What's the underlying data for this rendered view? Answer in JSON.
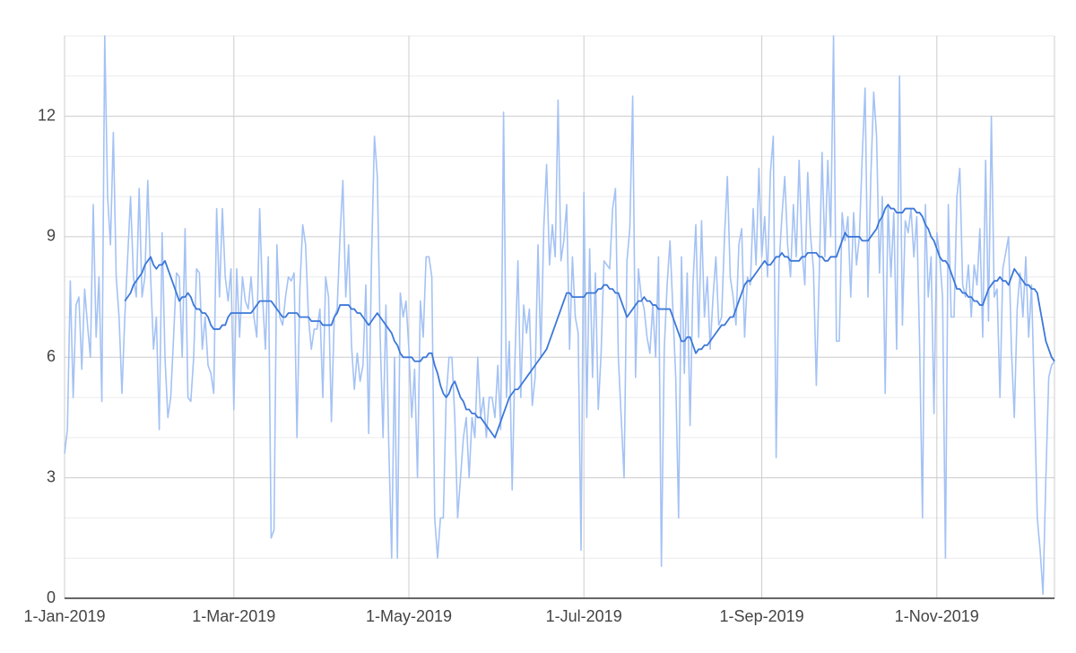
{
  "chart_data": {
    "type": "line",
    "x": [
      "1-Jan-2019",
      "2-Jan-2019",
      "3-Jan-2019",
      "4-Jan-2019",
      "5-Jan-2019",
      "6-Jan-2019",
      "7-Jan-2019",
      "8-Jan-2019",
      "9-Jan-2019",
      "10-Jan-2019",
      "11-Jan-2019",
      "12-Jan-2019",
      "13-Jan-2019",
      "14-Jan-2019",
      "15-Jan-2019",
      "16-Jan-2019",
      "17-Jan-2019",
      "18-Jan-2019",
      "19-Jan-2019",
      "20-Jan-2019",
      "21-Jan-2019",
      "22-Jan-2019",
      "23-Jan-2019",
      "24-Jan-2019",
      "25-Jan-2019",
      "26-Jan-2019",
      "27-Jan-2019",
      "28-Jan-2019",
      "29-Jan-2019",
      "30-Jan-2019",
      "31-Jan-2019",
      "1-Feb-2019",
      "2-Feb-2019",
      "3-Feb-2019",
      "4-Feb-2019",
      "5-Feb-2019",
      "6-Feb-2019",
      "7-Feb-2019",
      "8-Feb-2019",
      "9-Feb-2019",
      "10-Feb-2019",
      "11-Feb-2019",
      "12-Feb-2019",
      "13-Feb-2019",
      "14-Feb-2019",
      "15-Feb-2019",
      "16-Feb-2019",
      "17-Feb-2019",
      "18-Feb-2019",
      "19-Feb-2019",
      "20-Feb-2019",
      "21-Feb-2019",
      "22-Feb-2019",
      "23-Feb-2019",
      "24-Feb-2019",
      "25-Feb-2019",
      "26-Feb-2019",
      "27-Feb-2019",
      "28-Feb-2019",
      "1-Mar-2019",
      "2-Mar-2019",
      "3-Mar-2019",
      "4-Mar-2019",
      "5-Mar-2019",
      "6-Mar-2019",
      "7-Mar-2019",
      "8-Mar-2019",
      "9-Mar-2019",
      "10-Mar-2019",
      "11-Mar-2019",
      "12-Mar-2019",
      "13-Mar-2019",
      "14-Mar-2019",
      "15-Mar-2019",
      "16-Mar-2019",
      "17-Mar-2019",
      "18-Mar-2019",
      "19-Mar-2019",
      "20-Mar-2019",
      "21-Mar-2019",
      "22-Mar-2019",
      "23-Mar-2019",
      "24-Mar-2019",
      "25-Mar-2019",
      "26-Mar-2019",
      "27-Mar-2019",
      "28-Mar-2019",
      "29-Mar-2019",
      "30-Mar-2019",
      "31-Mar-2019",
      "1-Apr-2019",
      "2-Apr-2019",
      "3-Apr-2019",
      "4-Apr-2019",
      "5-Apr-2019",
      "6-Apr-2019",
      "7-Apr-2019",
      "8-Apr-2019",
      "9-Apr-2019",
      "10-Apr-2019",
      "11-Apr-2019",
      "12-Apr-2019",
      "13-Apr-2019",
      "14-Apr-2019",
      "15-Apr-2019",
      "16-Apr-2019",
      "17-Apr-2019",
      "18-Apr-2019",
      "19-Apr-2019",
      "20-Apr-2019",
      "21-Apr-2019",
      "22-Apr-2019",
      "23-Apr-2019",
      "24-Apr-2019",
      "25-Apr-2019",
      "26-Apr-2019",
      "27-Apr-2019",
      "28-Apr-2019",
      "29-Apr-2019",
      "30-Apr-2019",
      "1-May-2019",
      "2-May-2019",
      "3-May-2019",
      "4-May-2019",
      "5-May-2019",
      "6-May-2019",
      "7-May-2019",
      "8-May-2019",
      "9-May-2019",
      "10-May-2019",
      "11-May-2019",
      "12-May-2019",
      "13-May-2019",
      "14-May-2019",
      "15-May-2019",
      "16-May-2019",
      "17-May-2019",
      "18-May-2019",
      "19-May-2019",
      "20-May-2019",
      "21-May-2019",
      "22-May-2019",
      "23-May-2019",
      "24-May-2019",
      "25-May-2019",
      "26-May-2019",
      "27-May-2019",
      "28-May-2019",
      "29-May-2019",
      "30-May-2019",
      "31-May-2019",
      "1-Jun-2019",
      "2-Jun-2019",
      "3-Jun-2019",
      "4-Jun-2019",
      "5-Jun-2019",
      "6-Jun-2019",
      "7-Jun-2019",
      "8-Jun-2019",
      "9-Jun-2019",
      "10-Jun-2019",
      "11-Jun-2019",
      "12-Jun-2019",
      "13-Jun-2019",
      "14-Jun-2019",
      "15-Jun-2019",
      "16-Jun-2019",
      "17-Jun-2019",
      "18-Jun-2019",
      "19-Jun-2019",
      "20-Jun-2019",
      "21-Jun-2019",
      "22-Jun-2019",
      "23-Jun-2019",
      "24-Jun-2019",
      "25-Jun-2019",
      "26-Jun-2019",
      "27-Jun-2019",
      "28-Jun-2019",
      "29-Jun-2019",
      "30-Jun-2019",
      "1-Jul-2019",
      "2-Jul-2019",
      "3-Jul-2019",
      "4-Jul-2019",
      "5-Jul-2019",
      "6-Jul-2019",
      "7-Jul-2019",
      "8-Jul-2019",
      "9-Jul-2019",
      "10-Jul-2019",
      "11-Jul-2019",
      "12-Jul-2019",
      "13-Jul-2019",
      "14-Jul-2019",
      "15-Jul-2019",
      "16-Jul-2019",
      "17-Jul-2019",
      "18-Jul-2019",
      "19-Jul-2019",
      "20-Jul-2019",
      "21-Jul-2019",
      "22-Jul-2019",
      "23-Jul-2019",
      "24-Jul-2019",
      "25-Jul-2019",
      "26-Jul-2019",
      "27-Jul-2019",
      "28-Jul-2019",
      "29-Jul-2019",
      "30-Jul-2019",
      "31-Jul-2019",
      "1-Aug-2019",
      "2-Aug-2019",
      "3-Aug-2019",
      "4-Aug-2019",
      "5-Aug-2019",
      "6-Aug-2019",
      "7-Aug-2019",
      "8-Aug-2019",
      "9-Aug-2019",
      "10-Aug-2019",
      "11-Aug-2019",
      "12-Aug-2019",
      "13-Aug-2019",
      "14-Aug-2019",
      "15-Aug-2019",
      "16-Aug-2019",
      "17-Aug-2019",
      "18-Aug-2019",
      "19-Aug-2019",
      "20-Aug-2019",
      "21-Aug-2019",
      "22-Aug-2019",
      "23-Aug-2019",
      "24-Aug-2019",
      "25-Aug-2019",
      "26-Aug-2019",
      "27-Aug-2019",
      "28-Aug-2019",
      "29-Aug-2019",
      "30-Aug-2019",
      "31-Aug-2019",
      "1-Sep-2019",
      "2-Sep-2019",
      "3-Sep-2019",
      "4-Sep-2019",
      "5-Sep-2019",
      "6-Sep-2019",
      "7-Sep-2019",
      "8-Sep-2019",
      "9-Sep-2019",
      "10-Sep-2019",
      "11-Sep-2019",
      "12-Sep-2019",
      "13-Sep-2019",
      "14-Sep-2019",
      "15-Sep-2019",
      "16-Sep-2019",
      "17-Sep-2019",
      "18-Sep-2019",
      "19-Sep-2019",
      "20-Sep-2019",
      "21-Sep-2019",
      "22-Sep-2019",
      "23-Sep-2019",
      "24-Sep-2019",
      "25-Sep-2019",
      "26-Sep-2019",
      "27-Sep-2019",
      "28-Sep-2019",
      "29-Sep-2019",
      "30-Sep-2019",
      "1-Oct-2019",
      "2-Oct-2019",
      "3-Oct-2019",
      "4-Oct-2019",
      "5-Oct-2019",
      "6-Oct-2019",
      "7-Oct-2019",
      "8-Oct-2019",
      "9-Oct-2019",
      "10-Oct-2019",
      "11-Oct-2019",
      "12-Oct-2019",
      "13-Oct-2019",
      "14-Oct-2019",
      "15-Oct-2019",
      "16-Oct-2019",
      "17-Oct-2019",
      "18-Oct-2019",
      "19-Oct-2019",
      "20-Oct-2019",
      "21-Oct-2019",
      "22-Oct-2019",
      "23-Oct-2019",
      "24-Oct-2019",
      "25-Oct-2019",
      "26-Oct-2019",
      "27-Oct-2019",
      "28-Oct-2019",
      "29-Oct-2019",
      "30-Oct-2019",
      "31-Oct-2019",
      "1-Nov-2019",
      "2-Nov-2019",
      "3-Nov-2019",
      "4-Nov-2019",
      "5-Nov-2019",
      "6-Nov-2019",
      "7-Nov-2019",
      "8-Nov-2019",
      "9-Nov-2019",
      "10-Nov-2019",
      "11-Nov-2019",
      "12-Nov-2019",
      "13-Nov-2019",
      "14-Nov-2019",
      "15-Nov-2019",
      "16-Nov-2019",
      "17-Nov-2019",
      "18-Nov-2019",
      "19-Nov-2019",
      "20-Nov-2019",
      "21-Nov-2019",
      "22-Nov-2019",
      "23-Nov-2019",
      "24-Nov-2019",
      "25-Nov-2019",
      "26-Nov-2019",
      "27-Nov-2019",
      "28-Nov-2019",
      "29-Nov-2019",
      "30-Nov-2019",
      "1-Dec-2019",
      "2-Dec-2019",
      "3-Dec-2019",
      "4-Dec-2019",
      "5-Dec-2019",
      "6-Dec-2019",
      "7-Dec-2019",
      "8-Dec-2019",
      "9-Dec-2019",
      "10-Dec-2019",
      "11-Dec-2019",
      "12-Dec-2019"
    ],
    "series": [
      {
        "color": "#a4c2f4",
        "values": [
          3.6,
          4.2,
          7.9,
          5.0,
          7.3,
          7.5,
          5.7,
          7.7,
          6.8,
          6.0,
          9.8,
          6.5,
          8.0,
          4.9,
          14.0,
          10.0,
          8.8,
          11.6,
          8.0,
          7.0,
          5.1,
          7.0,
          8.5,
          10.0,
          8.0,
          7.5,
          10.2,
          7.5,
          8.0,
          10.4,
          8.0,
          6.2,
          7.0,
          4.2,
          9.1,
          6.0,
          4.5,
          5.0,
          6.5,
          8.1,
          8.0,
          6.0,
          9.2,
          5.0,
          4.9,
          6.0,
          8.2,
          8.1,
          6.2,
          7.0,
          5.8,
          5.6,
          5.1,
          9.7,
          7.5,
          9.7,
          8.0,
          7.4,
          8.2,
          4.7,
          8.2,
          6.5,
          8.0,
          7.4,
          7.2,
          8.0,
          7.0,
          6.5,
          9.7,
          7.5,
          6.2,
          8.5,
          1.5,
          1.7,
          8.8,
          7.0,
          6.8,
          7.5,
          8.0,
          7.9,
          8.1,
          4.0,
          7.7,
          9.3,
          8.8,
          7.0,
          6.2,
          6.7,
          6.7,
          7.2,
          5.0,
          8.0,
          7.5,
          4.4,
          7.0,
          7.2,
          9.0,
          10.4,
          7.5,
          8.8,
          6.3,
          5.2,
          6.1,
          5.4,
          5.8,
          7.8,
          4.1,
          8.5,
          11.5,
          10.5,
          6.5,
          4.0,
          7.3,
          3.8,
          1.0,
          6.0,
          1.0,
          7.6,
          7.0,
          7.4,
          6.2,
          4.5,
          5.7,
          3.0,
          7.4,
          6.5,
          8.5,
          8.5,
          8.0,
          2.0,
          1.0,
          2.0,
          2.0,
          5.0,
          6.0,
          6.0,
          4.5,
          2.0,
          3.0,
          4.0,
          4.5,
          3.0,
          4.5,
          4.0,
          6.0,
          4.5,
          5.0,
          4.0,
          5.0,
          5.0,
          4.5,
          5.8,
          4.2,
          12.1,
          5.0,
          6.4,
          2.7,
          6.0,
          8.4,
          5.0,
          7.3,
          6.6,
          7.2,
          4.8,
          5.5,
          8.8,
          6.0,
          9.2,
          10.8,
          8.3,
          9.3,
          8.5,
          12.4,
          8.4,
          8.9,
          9.8,
          6.2,
          8.5,
          7.0,
          6.6,
          1.2,
          10.1,
          4.5,
          8.7,
          5.5,
          8.1,
          4.7,
          6.1,
          8.4,
          8.3,
          8.2,
          9.7,
          10.2,
          6.0,
          4.5,
          3.0,
          8.4,
          9.2,
          12.5,
          5.5,
          8.2,
          7.5,
          7.2,
          6.5,
          6.1,
          7.3,
          6.0,
          8.5,
          0.8,
          6.2,
          7.8,
          8.9,
          7.2,
          5.5,
          2.0,
          8.5,
          5.6,
          8.1,
          4.3,
          7.8,
          9.3,
          6.5,
          9.4,
          7.0,
          8.0,
          6.2,
          7.5,
          8.5,
          6.8,
          7.0,
          9.0,
          10.5,
          8.0,
          7.5,
          6.8,
          8.8,
          9.2,
          6.5,
          8.0,
          7.8,
          9.7,
          8.3,
          10.7,
          8.5,
          9.5,
          8.0,
          10.6,
          11.5,
          3.5,
          8.3,
          9.5,
          10.5,
          8.8,
          8.0,
          9.8,
          8.5,
          10.9,
          8.7,
          7.8,
          10.6,
          9.0,
          8.2,
          5.3,
          8.0,
          11.1,
          8.5,
          10.9,
          9.0,
          14.0,
          6.4,
          6.4,
          9.6,
          8.9,
          9.5,
          7.5,
          9.6,
          8.3,
          9.0,
          11.0,
          12.7,
          7.5,
          10.5,
          12.6,
          11.5,
          8.1,
          10.0,
          5.1,
          9.8,
          8.0,
          9.6,
          6.2,
          13.0,
          6.8,
          9.4,
          9.1,
          9.7,
          8.5,
          9.5,
          6.3,
          2.0,
          9.8,
          7.5,
          8.5,
          4.6,
          9.1,
          8.5,
          7.5,
          1.0,
          9.8,
          7.0,
          7.0,
          10.0,
          10.7,
          7.8,
          7.5,
          8.3,
          7.0,
          8.3,
          7.8,
          9.2,
          6.5,
          10.9,
          6.9,
          12.0,
          7.5,
          7.7,
          5.0,
          8.2,
          8.6,
          9.0,
          6.2,
          4.5,
          7.2,
          8.1,
          7.0,
          8.5,
          6.5,
          7.8,
          5.0,
          2.0,
          1.2,
          0.1,
          3.0,
          5.5,
          5.8,
          5.9
        ]
      },
      {
        "color": "#3d78d8",
        "values": [
          null,
          null,
          null,
          null,
          null,
          null,
          null,
          null,
          null,
          null,
          null,
          null,
          null,
          null,
          null,
          null,
          null,
          null,
          null,
          null,
          null,
          7.4,
          7.5,
          7.6,
          7.8,
          7.9,
          8.0,
          8.1,
          8.3,
          8.4,
          8.5,
          8.3,
          8.2,
          8.3,
          8.3,
          8.4,
          8.2,
          8.0,
          7.8,
          7.6,
          7.4,
          7.5,
          7.5,
          7.6,
          7.5,
          7.3,
          7.2,
          7.2,
          7.1,
          7.1,
          7.0,
          6.8,
          6.7,
          6.7,
          6.7,
          6.8,
          6.8,
          7.0,
          7.1,
          7.1,
          7.1,
          7.1,
          7.1,
          7.1,
          7.1,
          7.1,
          7.2,
          7.3,
          7.4,
          7.4,
          7.4,
          7.4,
          7.4,
          7.3,
          7.2,
          7.1,
          7.0,
          7.0,
          7.1,
          7.1,
          7.1,
          7.1,
          7.0,
          7.0,
          7.0,
          7.0,
          6.9,
          6.9,
          6.9,
          6.9,
          6.8,
          6.8,
          6.8,
          6.8,
          7.0,
          7.1,
          7.3,
          7.3,
          7.3,
          7.3,
          7.2,
          7.2,
          7.1,
          7.1,
          7.0,
          6.9,
          6.8,
          6.9,
          7.0,
          7.1,
          7.0,
          6.9,
          6.8,
          6.7,
          6.6,
          6.4,
          6.3,
          6.1,
          6.0,
          6.0,
          6.0,
          6.0,
          5.9,
          5.9,
          5.9,
          6.0,
          6.0,
          6.1,
          6.1,
          5.8,
          5.6,
          5.3,
          5.1,
          5.0,
          5.1,
          5.3,
          5.4,
          5.2,
          5.0,
          4.9,
          4.7,
          4.7,
          4.6,
          4.6,
          4.5,
          4.5,
          4.4,
          4.3,
          4.2,
          4.1,
          4.0,
          4.2,
          4.4,
          4.6,
          4.8,
          5.0,
          5.1,
          5.2,
          5.2,
          5.3,
          5.4,
          5.5,
          5.6,
          5.7,
          5.8,
          5.9,
          6.0,
          6.1,
          6.2,
          6.4,
          6.6,
          6.8,
          7.0,
          7.2,
          7.4,
          7.6,
          7.6,
          7.5,
          7.5,
          7.5,
          7.5,
          7.5,
          7.6,
          7.6,
          7.6,
          7.6,
          7.7,
          7.7,
          7.8,
          7.8,
          7.7,
          7.7,
          7.6,
          7.6,
          7.4,
          7.2,
          7.0,
          7.1,
          7.2,
          7.3,
          7.4,
          7.4,
          7.5,
          7.4,
          7.4,
          7.3,
          7.3,
          7.2,
          7.2,
          7.2,
          7.2,
          7.2,
          7.0,
          6.8,
          6.6,
          6.4,
          6.4,
          6.5,
          6.5,
          6.3,
          6.1,
          6.2,
          6.2,
          6.3,
          6.3,
          6.4,
          6.5,
          6.6,
          6.7,
          6.8,
          6.8,
          6.9,
          7.0,
          7.0,
          7.2,
          7.4,
          7.6,
          7.8,
          7.9,
          7.9,
          8.0,
          8.1,
          8.2,
          8.3,
          8.4,
          8.3,
          8.3,
          8.4,
          8.5,
          8.5,
          8.6,
          8.5,
          8.5,
          8.4,
          8.4,
          8.4,
          8.4,
          8.5,
          8.5,
          8.6,
          8.6,
          8.6,
          8.6,
          8.5,
          8.5,
          8.4,
          8.4,
          8.5,
          8.5,
          8.5,
          8.7,
          8.9,
          9.1,
          9.0,
          9.0,
          9.0,
          9.0,
          9.0,
          8.9,
          8.9,
          8.9,
          9.0,
          9.1,
          9.2,
          9.4,
          9.5,
          9.7,
          9.8,
          9.7,
          9.7,
          9.6,
          9.6,
          9.6,
          9.7,
          9.7,
          9.7,
          9.7,
          9.6,
          9.6,
          9.5,
          9.3,
          9.2,
          9.0,
          8.9,
          8.7,
          8.5,
          8.4,
          8.4,
          8.3,
          8.1,
          7.9,
          7.7,
          7.7,
          7.6,
          7.6,
          7.5,
          7.5,
          7.4,
          7.4,
          7.3,
          7.3,
          7.5,
          7.7,
          7.8,
          7.9,
          7.9,
          8.0,
          7.9,
          7.9,
          7.8,
          8.0,
          8.2,
          8.1,
          8.0,
          7.9,
          7.8,
          7.8,
          7.7,
          7.7,
          7.6,
          7.2,
          6.8,
          6.4,
          6.2,
          6.0,
          5.9
        ]
      }
    ],
    "xlim": [
      "1-Jan-2019",
      "12-Dec-2019"
    ],
    "xticks": [
      "1-Jan-2019",
      "1-Mar-2019",
      "1-May-2019",
      "1-Jul-2019",
      "1-Sep-2019",
      "1-Nov-2019"
    ],
    "ylim": [
      0,
      14
    ],
    "yticks": [
      0,
      3,
      6,
      9,
      12
    ],
    "minor_yticks": [
      1,
      2,
      4,
      5,
      7,
      8,
      10,
      11,
      13,
      14
    ],
    "grid": true
  }
}
